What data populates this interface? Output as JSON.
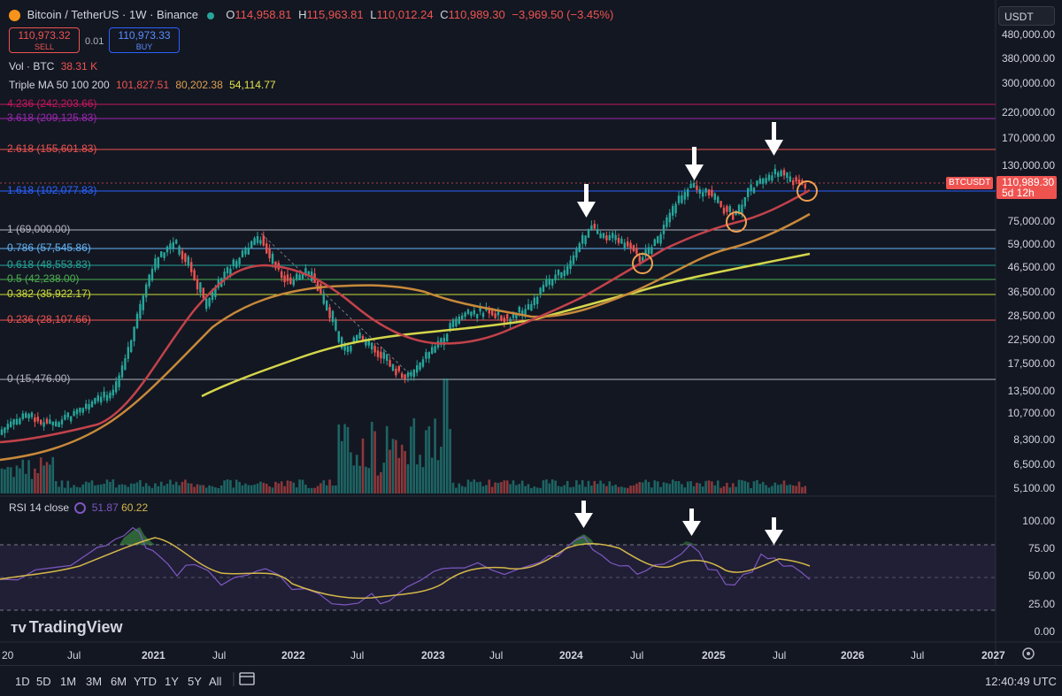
{
  "header": {
    "symbol": "Bitcoin / TetherUS · 1W · Binance",
    "o_label": "O",
    "o_val": "114,958.81",
    "h_label": "H",
    "h_val": "115,963.81",
    "l_label": "L",
    "l_val": "110,012.24",
    "c_label": "C",
    "c_val": "110,989.30",
    "change": "−3,969.50 (−3.45%)",
    "sell_price": "110,973.32",
    "sell_label": "SELL",
    "spread": "0.01",
    "buy_price": "110,973.33",
    "buy_label": "BUY",
    "vol_label": "Vol · BTC",
    "vol_val": "38.31 K",
    "ma_label": "Triple MA 50 100 200",
    "ma1": "101,827.51",
    "ma2": "80,202.38",
    "ma3": "54,114.77"
  },
  "currency_selector": "USDT",
  "price_badge": {
    "symbol": "BTCUSDT",
    "price": "110,989.30",
    "countdown": "5d 12h"
  },
  "price_axis": [
    "480,000.00",
    "380,000.00",
    "300,000.00",
    "220,000.00",
    "170,000.00",
    "130,000.00",
    "75,000.00",
    "59,000.00",
    "46,500.00",
    "36,500.00",
    "28,500.00",
    "22,500.00",
    "17,500.00",
    "13,500.00",
    "10,700.00",
    "8,300.00",
    "6,500.00",
    "5,100.00"
  ],
  "fib_levels": [
    {
      "label": "4.236 (242,203.66)",
      "color": "#c2185b"
    },
    {
      "label": "3.618 (209,125.83)",
      "color": "#9c27b0"
    },
    {
      "label": "2.618 (155,601.83)",
      "color": "#ef5350"
    },
    {
      "label": "1.618 (102,077.83)",
      "color": "#2962ff"
    },
    {
      "label": "1 (69,000.00)",
      "color": "#b2b5be"
    },
    {
      "label": "0.786 (57,545.86)",
      "color": "#64b5f6"
    },
    {
      "label": "0.618 (48,553.83)",
      "color": "#26a69a"
    },
    {
      "label": "0.5 (42,238.00)",
      "color": "#4caf50"
    },
    {
      "label": "0.382 (35,922.17)",
      "color": "#cddc39"
    },
    {
      "label": "0.236 (28,107.66)",
      "color": "#ef5350"
    },
    {
      "label": "0 (15,476.00)",
      "color": "#b2b5be"
    }
  ],
  "rsi": {
    "title": "RSI 14 close",
    "val1": "51.87",
    "val2": "60.22",
    "axis": [
      "100.00",
      "75.00",
      "50.00",
      "25.00",
      "0.00"
    ]
  },
  "time_axis": [
    "20",
    "Jul",
    "2021",
    "Jul",
    "2022",
    "Jul",
    "2023",
    "Jul",
    "2024",
    "Jul",
    "2025",
    "Jul",
    "2026",
    "Jul",
    "2027"
  ],
  "timeframes": [
    "1D",
    "5D",
    "1M",
    "3M",
    "6M",
    "YTD",
    "1Y",
    "5Y",
    "All"
  ],
  "clock": "12:40:49 UTC",
  "logo": "TradingView",
  "chart_data": {
    "type": "candlestick",
    "title": "Bitcoin / TetherUS · 1W · Binance",
    "x": [
      "2020-07",
      "2021-01",
      "2021-04",
      "2021-07",
      "2021-11",
      "2022-06",
      "2022-11",
      "2023-03",
      "2023-07",
      "2023-10",
      "2024-03",
      "2024-08",
      "2024-12",
      "2025-04",
      "2025-07",
      "2025-10"
    ],
    "close": [
      9500,
      32000,
      58000,
      35000,
      66000,
      20000,
      16000,
      28000,
      29500,
      34000,
      70000,
      55000,
      104000,
      80000,
      118000,
      110989
    ],
    "y_scale": "log",
    "series": [
      {
        "name": "MA 50",
        "values": [
          9000,
          15000,
          30000,
          38000,
          46000,
          40000,
          28000,
          24000,
          27000,
          29000,
          42000,
          58000,
          72000,
          88000,
          96000,
          101827
        ]
      },
      {
        "name": "MA 100",
        "values": [
          7500,
          9000,
          14000,
          22000,
          30000,
          38000,
          36000,
          33000,
          32000,
          31000,
          32000,
          41000,
          52000,
          62000,
          73000,
          80202
        ]
      },
      {
        "name": "MA 200",
        "values": [
          null,
          null,
          null,
          12000,
          15000,
          20000,
          23000,
          24500,
          26000,
          27500,
          30000,
          34000,
          39000,
          44000,
          50000,
          54114
        ]
      }
    ],
    "rsi": {
      "x": [
        "2020-07",
        "2021-03",
        "2021-11",
        "2022-06",
        "2023-03",
        "2024-03",
        "2024-12",
        "2025-07",
        "2025-10"
      ],
      "values": [
        60,
        88,
        68,
        28,
        55,
        84,
        76,
        70,
        51.87
      ],
      "ma": [
        55,
        80,
        64,
        36,
        52,
        75,
        66,
        65,
        60.22
      ]
    }
  }
}
